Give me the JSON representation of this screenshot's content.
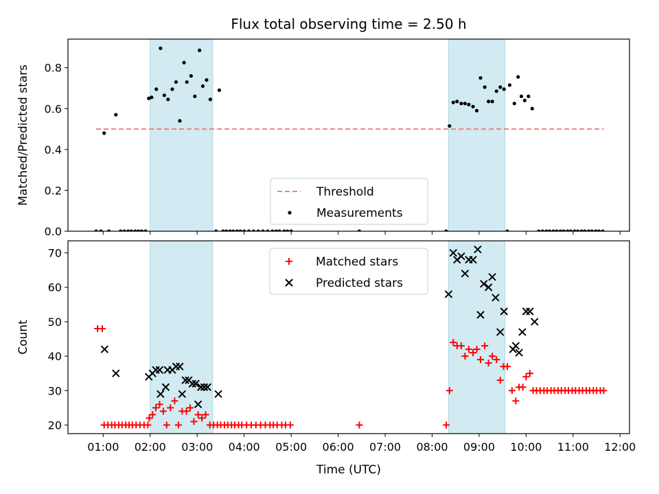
{
  "figure_title": "Flux total observing time = 2.50 h",
  "chart_data": [
    {
      "type": "scatter",
      "panel": "top",
      "ylabel": "Matched/Predicted stars",
      "xlabel": "",
      "ylim": [
        0,
        0.94
      ],
      "yticks": [
        0.0,
        0.2,
        0.4,
        0.6,
        0.8
      ],
      "ytick_labels": [
        "0.0",
        "0.2",
        "0.4",
        "0.6",
        "0.8"
      ],
      "shaded_intervals": [
        [
          2.0,
          3.33
        ],
        [
          8.35,
          9.55
        ]
      ],
      "shade_color": "#add8e6",
      "threshold": {
        "name": "Threshold",
        "y": 0.5,
        "x_range": [
          0.85,
          11.65
        ],
        "color": "#f08080",
        "style": "dashed"
      },
      "legend": {
        "position": "lower-center",
        "entries": [
          "Threshold",
          "Measurements"
        ]
      },
      "series": [
        {
          "name": "Measurements",
          "marker": "dot",
          "color": "#000000",
          "points": [
            [
              0.85,
              0
            ],
            [
              0.95,
              0
            ],
            [
              1.02,
              0.48
            ],
            [
              1.12,
              0
            ],
            [
              1.27,
              0.57
            ],
            [
              1.37,
              0
            ],
            [
              1.45,
              0
            ],
            [
              1.53,
              0
            ],
            [
              1.6,
              0
            ],
            [
              1.68,
              0
            ],
            [
              1.75,
              0
            ],
            [
              1.82,
              0
            ],
            [
              1.9,
              0
            ],
            [
              1.97,
              0.65
            ],
            [
              2.03,
              0.655
            ],
            [
              2.13,
              0.695
            ],
            [
              2.22,
              0.895
            ],
            [
              2.3,
              0.665
            ],
            [
              2.38,
              0.645
            ],
            [
              2.47,
              0.695
            ],
            [
              2.55,
              0.73
            ],
            [
              2.63,
              0.54
            ],
            [
              2.72,
              0.825
            ],
            [
              2.78,
              0.73
            ],
            [
              2.87,
              0.76
            ],
            [
              2.95,
              0.66
            ],
            [
              3.05,
              0.885
            ],
            [
              3.12,
              0.71
            ],
            [
              3.2,
              0.74
            ],
            [
              3.28,
              0.645
            ],
            [
              3.4,
              0.0
            ],
            [
              3.47,
              0.69
            ],
            [
              3.55,
              0
            ],
            [
              3.62,
              0
            ],
            [
              3.7,
              0
            ],
            [
              3.77,
              0
            ],
            [
              3.85,
              0
            ],
            [
              3.92,
              0
            ],
            [
              4.0,
              0
            ],
            [
              4.1,
              0
            ],
            [
              4.2,
              0
            ],
            [
              4.3,
              0
            ],
            [
              4.4,
              0
            ],
            [
              4.5,
              0
            ],
            [
              4.6,
              0
            ],
            [
              4.68,
              0
            ],
            [
              4.75,
              0
            ],
            [
              4.85,
              0
            ],
            [
              4.92,
              0
            ],
            [
              5.0,
              0
            ],
            [
              6.45,
              0
            ],
            [
              8.3,
              0
            ],
            [
              8.37,
              0.515
            ],
            [
              8.45,
              0.63
            ],
            [
              8.53,
              0.635
            ],
            [
              8.62,
              0.625
            ],
            [
              8.7,
              0.625
            ],
            [
              8.78,
              0.62
            ],
            [
              8.87,
              0.61
            ],
            [
              8.95,
              0.59
            ],
            [
              9.03,
              0.75
            ],
            [
              9.12,
              0.705
            ],
            [
              9.2,
              0.635
            ],
            [
              9.28,
              0.635
            ],
            [
              9.37,
              0.685
            ],
            [
              9.45,
              0.705
            ],
            [
              9.53,
              0.695
            ],
            [
              9.6,
              0
            ],
            [
              9.65,
              0.715
            ],
            [
              9.75,
              0.625
            ],
            [
              9.83,
              0.755
            ],
            [
              9.9,
              0.66
            ],
            [
              9.97,
              0.64
            ],
            [
              10.05,
              0.66
            ],
            [
              10.13,
              0.6
            ],
            [
              10.27,
              0
            ],
            [
              10.35,
              0
            ],
            [
              10.43,
              0
            ],
            [
              10.5,
              0
            ],
            [
              10.58,
              0
            ],
            [
              10.65,
              0
            ],
            [
              10.73,
              0
            ],
            [
              10.8,
              0
            ],
            [
              10.88,
              0
            ],
            [
              10.95,
              0
            ],
            [
              11.03,
              0
            ],
            [
              11.1,
              0
            ],
            [
              11.18,
              0
            ],
            [
              11.25,
              0
            ],
            [
              11.33,
              0
            ],
            [
              11.4,
              0
            ],
            [
              11.48,
              0
            ],
            [
              11.55,
              0
            ],
            [
              11.63,
              0
            ]
          ]
        }
      ]
    },
    {
      "type": "scatter",
      "panel": "bottom",
      "xlabel": "Time (UTC)",
      "ylabel": "Count",
      "xlim": [
        0.25,
        12.2
      ],
      "ylim": [
        17.5,
        73.5
      ],
      "xticks": [
        1,
        2,
        3,
        4,
        5,
        6,
        7,
        8,
        9,
        10,
        11,
        12
      ],
      "xtick_labels": [
        "01:00",
        "02:00",
        "03:00",
        "04:00",
        "05:00",
        "06:00",
        "07:00",
        "08:00",
        "09:00",
        "10:00",
        "11:00",
        "12:00"
      ],
      "yticks": [
        20,
        30,
        40,
        50,
        60,
        70
      ],
      "ytick_labels": [
        "20",
        "30",
        "40",
        "50",
        "60",
        "70"
      ],
      "shaded_intervals": [
        [
          2.0,
          3.33
        ],
        [
          8.35,
          9.55
        ]
      ],
      "shade_color": "#add8e6",
      "legend": {
        "position": "top-center",
        "entries": [
          "Matched stars",
          "Predicted stars"
        ]
      },
      "series": [
        {
          "name": "Matched stars",
          "marker": "plus",
          "color": "#ff0000",
          "points": [
            [
              0.88,
              48
            ],
            [
              0.98,
              48
            ],
            [
              1.02,
              20
            ],
            [
              1.1,
              20
            ],
            [
              1.18,
              20
            ],
            [
              1.25,
              20
            ],
            [
              1.33,
              20
            ],
            [
              1.4,
              20
            ],
            [
              1.48,
              20
            ],
            [
              1.55,
              20
            ],
            [
              1.62,
              20
            ],
            [
              1.7,
              20
            ],
            [
              1.78,
              20
            ],
            [
              1.87,
              20
            ],
            [
              1.95,
              20
            ],
            [
              1.98,
              22
            ],
            [
              2.05,
              23
            ],
            [
              2.12,
              25
            ],
            [
              2.2,
              26
            ],
            [
              2.28,
              24
            ],
            [
              2.35,
              20
            ],
            [
              2.43,
              25
            ],
            [
              2.52,
              27
            ],
            [
              2.6,
              20
            ],
            [
              2.68,
              24
            ],
            [
              2.77,
              24
            ],
            [
              2.85,
              25
            ],
            [
              2.93,
              21
            ],
            [
              3.02,
              23
            ],
            [
              3.1,
              22
            ],
            [
              3.18,
              23
            ],
            [
              3.27,
              20
            ],
            [
              3.35,
              20
            ],
            [
              3.43,
              20
            ],
            [
              3.5,
              20
            ],
            [
              3.58,
              20
            ],
            [
              3.65,
              20
            ],
            [
              3.73,
              20
            ],
            [
              3.8,
              20
            ],
            [
              3.88,
              20
            ],
            [
              3.95,
              20
            ],
            [
              4.05,
              20
            ],
            [
              4.15,
              20
            ],
            [
              4.25,
              20
            ],
            [
              4.35,
              20
            ],
            [
              4.45,
              20
            ],
            [
              4.55,
              20
            ],
            [
              4.62,
              20
            ],
            [
              4.7,
              20
            ],
            [
              4.8,
              20
            ],
            [
              4.88,
              20
            ],
            [
              4.98,
              20
            ],
            [
              6.45,
              20
            ],
            [
              8.3,
              20
            ],
            [
              8.37,
              30
            ],
            [
              8.45,
              44
            ],
            [
              8.53,
              43
            ],
            [
              8.62,
              43
            ],
            [
              8.7,
              40
            ],
            [
              8.78,
              42
            ],
            [
              8.87,
              41
            ],
            [
              8.95,
              42
            ],
            [
              9.03,
              39
            ],
            [
              9.12,
              43
            ],
            [
              9.2,
              38
            ],
            [
              9.28,
              40
            ],
            [
              9.37,
              39
            ],
            [
              9.45,
              33
            ],
            [
              9.52,
              37
            ],
            [
              9.6,
              37
            ],
            [
              9.7,
              30
            ],
            [
              9.78,
              27
            ],
            [
              9.85,
              31
            ],
            [
              9.93,
              31
            ],
            [
              10.0,
              34
            ],
            [
              10.08,
              35
            ],
            [
              10.15,
              30
            ],
            [
              10.22,
              30
            ],
            [
              10.3,
              30
            ],
            [
              10.38,
              30
            ],
            [
              10.45,
              30
            ],
            [
              10.53,
              30
            ],
            [
              10.6,
              30
            ],
            [
              10.68,
              30
            ],
            [
              10.75,
              30
            ],
            [
              10.83,
              30
            ],
            [
              10.9,
              30
            ],
            [
              10.98,
              30
            ],
            [
              11.05,
              30
            ],
            [
              11.13,
              30
            ],
            [
              11.2,
              30
            ],
            [
              11.28,
              30
            ],
            [
              11.35,
              30
            ],
            [
              11.43,
              30
            ],
            [
              11.5,
              30
            ],
            [
              11.58,
              30
            ],
            [
              11.65,
              30
            ]
          ]
        },
        {
          "name": "Predicted stars",
          "marker": "x",
          "color": "#000000",
          "points": [
            [
              1.03,
              42
            ],
            [
              1.27,
              35
            ],
            [
              1.97,
              34
            ],
            [
              2.05,
              35
            ],
            [
              2.12,
              36
            ],
            [
              2.22,
              29
            ],
            [
              2.2,
              36
            ],
            [
              2.33,
              31
            ],
            [
              2.37,
              36
            ],
            [
              2.47,
              36
            ],
            [
              2.55,
              37
            ],
            [
              2.63,
              37
            ],
            [
              2.68,
              29
            ],
            [
              2.75,
              33
            ],
            [
              2.82,
              33
            ],
            [
              2.9,
              32
            ],
            [
              2.97,
              32
            ],
            [
              3.02,
              26
            ],
            [
              3.08,
              31
            ],
            [
              3.15,
              31
            ],
            [
              3.22,
              31
            ],
            [
              3.45,
              29
            ],
            [
              8.35,
              58
            ],
            [
              8.45,
              70
            ],
            [
              8.53,
              68
            ],
            [
              8.62,
              69
            ],
            [
              8.7,
              64
            ],
            [
              8.78,
              68
            ],
            [
              8.87,
              68
            ],
            [
              8.97,
              71
            ],
            [
              9.03,
              52
            ],
            [
              9.1,
              61
            ],
            [
              9.2,
              60
            ],
            [
              9.28,
              63
            ],
            [
              9.35,
              57
            ],
            [
              9.45,
              47
            ],
            [
              9.53,
              53
            ],
            [
              9.72,
              42
            ],
            [
              9.78,
              43
            ],
            [
              9.85,
              41
            ],
            [
              9.92,
              47
            ],
            [
              10.0,
              53
            ],
            [
              10.08,
              53
            ],
            [
              10.18,
              50
            ]
          ]
        }
      ]
    }
  ]
}
